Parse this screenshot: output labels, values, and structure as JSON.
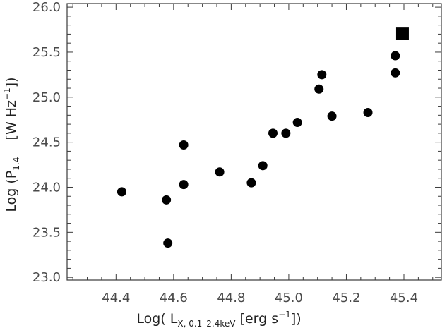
{
  "chart_data": {
    "type": "scatter",
    "title": "",
    "xlabel": {
      "prefix": "Log( L",
      "sub": "X, 0.1–2.4keV",
      "middle": " [erg s",
      "sup": "−1",
      "suffix": "])"
    },
    "ylabel": {
      "prefix": "Log (P",
      "sub": "1.4",
      "middle": "    [W Hz",
      "sup": "−1",
      "suffix": "])"
    },
    "xlim": [
      44.23,
      45.53
    ],
    "ylim": [
      22.97,
      26.04
    ],
    "xticks": [
      44.4,
      44.6,
      44.8,
      45.0,
      45.2,
      45.4
    ],
    "xtick_labels": [
      "44.4",
      "44.6",
      "44.8",
      "45.0",
      "45.2",
      "45.4"
    ],
    "yticks": [
      23.0,
      23.5,
      24.0,
      24.5,
      25.0,
      25.5,
      26.0
    ],
    "ytick_labels": [
      "23.0",
      "23.5",
      "24.0",
      "24.5",
      "25.0",
      "25.5",
      "26.0"
    ],
    "grid": false,
    "series": [
      {
        "marker": "circle",
        "color": "#000000",
        "points": [
          [
            44.42,
            23.95
          ],
          [
            44.575,
            23.86
          ],
          [
            44.58,
            23.38
          ],
          [
            44.635,
            24.47
          ],
          [
            44.635,
            24.03
          ],
          [
            44.76,
            24.17
          ],
          [
            44.87,
            24.05
          ],
          [
            44.91,
            24.24
          ],
          [
            44.945,
            24.6
          ],
          [
            44.99,
            24.6
          ],
          [
            45.03,
            24.72
          ],
          [
            45.105,
            25.09
          ],
          [
            45.115,
            25.25
          ],
          [
            45.15,
            24.79
          ],
          [
            45.275,
            24.83
          ],
          [
            45.37,
            25.46
          ],
          [
            45.37,
            25.27
          ]
        ]
      },
      {
        "marker": "square",
        "color": "#000000",
        "points": [
          [
            45.395,
            25.71
          ]
        ]
      }
    ]
  }
}
